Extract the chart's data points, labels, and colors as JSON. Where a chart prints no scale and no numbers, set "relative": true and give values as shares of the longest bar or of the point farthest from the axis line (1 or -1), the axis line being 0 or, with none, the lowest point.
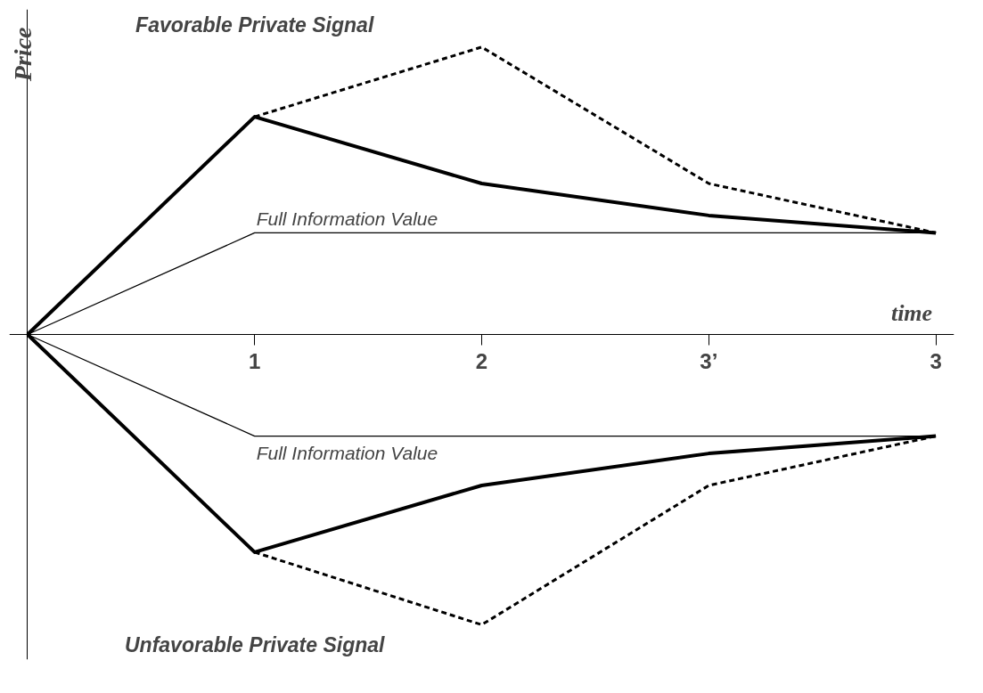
{
  "chart_data": {
    "type": "line",
    "relative": true,
    "xlabel": "time",
    "ylabel": "Price",
    "categories": [
      null,
      "1",
      "2",
      "3’",
      "3"
    ],
    "series": [
      {
        "color": "#000000",
        "line_style": "dashed",
        "values": [
          null,
          0.75,
          0.99,
          0.52,
          0.35
        ]
      },
      {
        "color": "#000000",
        "line_style": "solid",
        "values": [
          0,
          0.75,
          0.52,
          0.41,
          0.35
        ]
      },
      {
        "name": "Full Information Value",
        "color": "#000000",
        "line_style": "solid",
        "values": [
          0,
          0.35,
          0.35,
          0.35,
          0.35
        ]
      },
      {
        "name": "Full Information Value",
        "color": "#000000",
        "line_style": "solid",
        "values": [
          0,
          -0.35,
          -0.35,
          -0.35,
          -0.35
        ]
      },
      {
        "color": "#000000",
        "line_style": "solid",
        "values": [
          0,
          -0.75,
          -0.52,
          -0.41,
          -0.35
        ]
      },
      {
        "color": "#000000",
        "line_style": "dashed",
        "values": [
          null,
          -0.75,
          -1,
          -0.52,
          -0.35
        ]
      }
    ],
    "annotations": [
      "Favorable Private Signal",
      "Unfavorable Private Signal"
    ],
    "legend": false,
    "marker": "none"
  }
}
